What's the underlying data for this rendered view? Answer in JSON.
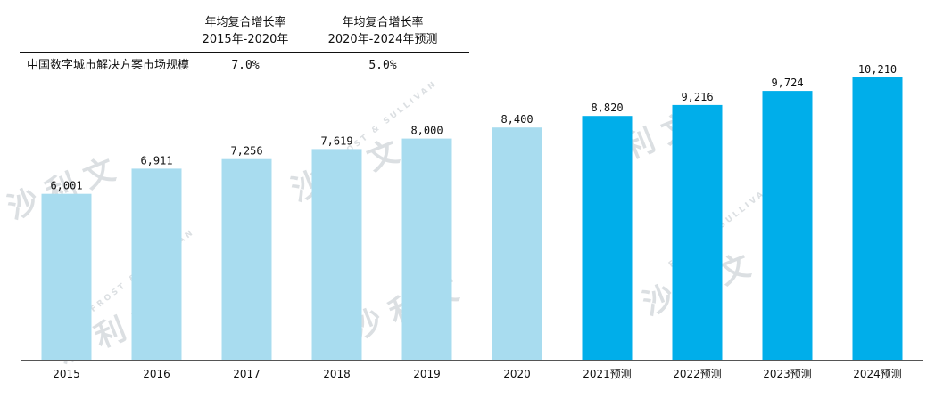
{
  "cagr_table": {
    "headers": [
      {
        "line1": "年均复合增长率",
        "line2": "2015年-2020年"
      },
      {
        "line1": "年均复合增长率",
        "line2": "2020年-2024年预测"
      }
    ],
    "row_label": "中国数字城市解决方案市场规模",
    "values": [
      "7.0%",
      "5.0%"
    ]
  },
  "watermark": {
    "cn": "沙 利 文",
    "en": "FROST & SULLIVAN"
  },
  "chart_data": {
    "type": "bar",
    "categories": [
      "2015",
      "2016",
      "2017",
      "2018",
      "2019",
      "2020",
      "2021预测",
      "2022预测",
      "2023预测",
      "2024预测"
    ],
    "values": [
      6001,
      6911,
      7256,
      7619,
      8000,
      8400,
      8820,
      9216,
      9724,
      10210
    ],
    "labels": [
      "6,001",
      "6,911",
      "7,256",
      "7,619",
      "8,000",
      "8,400",
      "8,820",
      "9,216",
      "9,724",
      "10,210"
    ],
    "forecast_from_index": 6,
    "colors": {
      "actual": "#a8dcef",
      "forecast": "#00aeea"
    },
    "ylim": [
      0,
      10210
    ],
    "grid": false
  }
}
